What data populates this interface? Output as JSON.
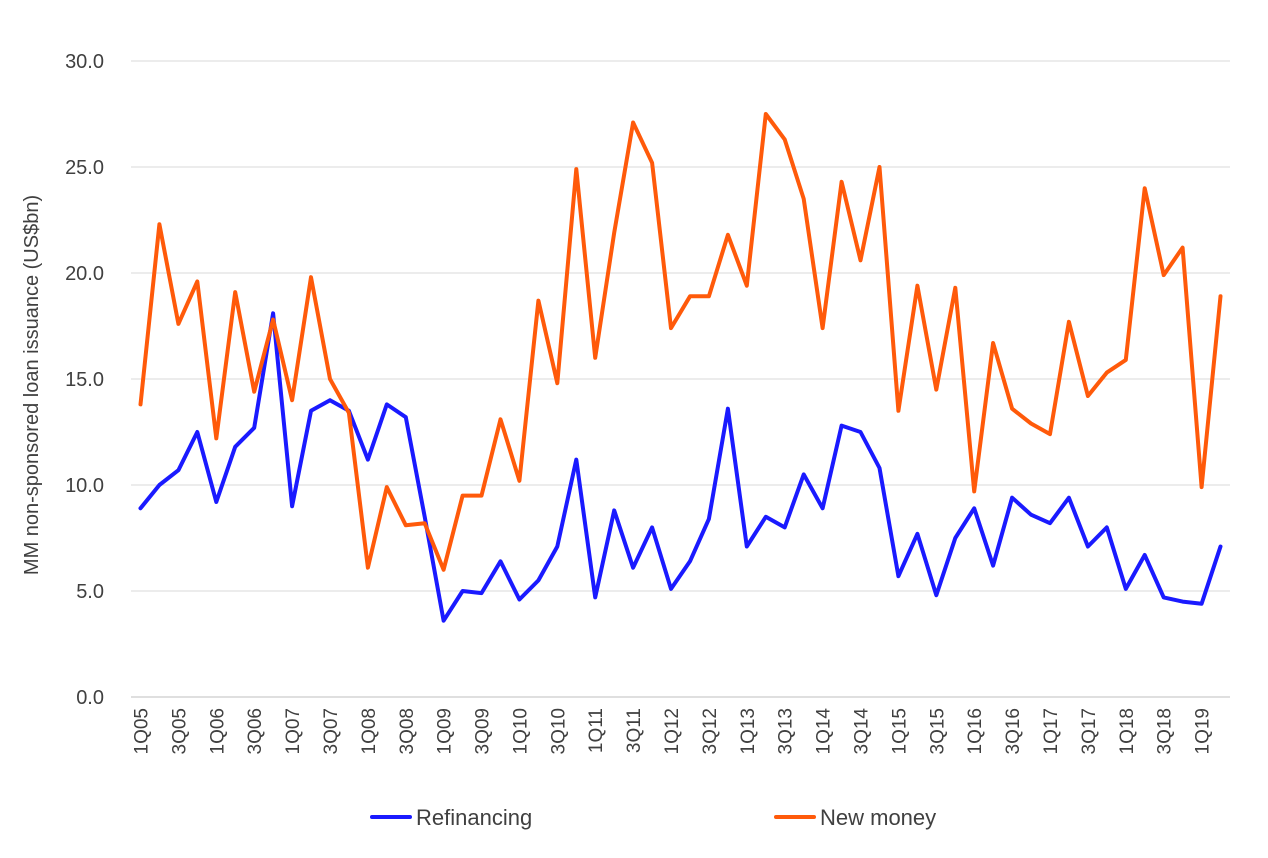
{
  "chart_data": {
    "type": "line",
    "title": "",
    "xlabel": "",
    "ylabel": "MM non-sponsored loan issuance (US$bn)",
    "ylim": [
      0,
      30
    ],
    "yticks": [
      "0.0",
      "5.0",
      "10.0",
      "15.0",
      "20.0",
      "25.0",
      "30.0"
    ],
    "grid": true,
    "legend_position": "bottom",
    "x": [
      "1Q05",
      "2Q05",
      "3Q05",
      "4Q05",
      "1Q06",
      "2Q06",
      "3Q06",
      "4Q06",
      "1Q07",
      "2Q07",
      "3Q07",
      "4Q07",
      "1Q08",
      "2Q08",
      "3Q08",
      "4Q08",
      "1Q09",
      "2Q09",
      "3Q09",
      "4Q09",
      "1Q10",
      "2Q10",
      "3Q10",
      "4Q10",
      "1Q11",
      "2Q11",
      "3Q11",
      "4Q11",
      "1Q12",
      "2Q12",
      "3Q12",
      "4Q12",
      "1Q13",
      "2Q13",
      "3Q13",
      "4Q13",
      "1Q14",
      "2Q14",
      "3Q14",
      "4Q14",
      "1Q15",
      "2Q15",
      "3Q15",
      "4Q15",
      "1Q16",
      "2Q16",
      "3Q16",
      "4Q16",
      "1Q17",
      "2Q17",
      "3Q17",
      "4Q17",
      "1Q18",
      "2Q18",
      "3Q18",
      "4Q18",
      "1Q19",
      "2Q19"
    ],
    "x_tick_labels": [
      "1Q05",
      "3Q05",
      "1Q06",
      "3Q06",
      "1Q07",
      "3Q07",
      "1Q08",
      "3Q08",
      "1Q09",
      "3Q09",
      "1Q10",
      "3Q10",
      "1Q11",
      "3Q11",
      "1Q12",
      "3Q12",
      "1Q13",
      "3Q13",
      "1Q14",
      "3Q14",
      "1Q15",
      "3Q15",
      "1Q16",
      "3Q16",
      "1Q17",
      "3Q17",
      "1Q18",
      "3Q18",
      "1Q19"
    ],
    "series": [
      {
        "name": "Refinancing",
        "color": "#1a1aff",
        "values": [
          8.9,
          10.0,
          10.7,
          12.5,
          9.2,
          11.8,
          12.7,
          18.1,
          9.0,
          13.5,
          14.0,
          13.5,
          11.2,
          13.8,
          13.2,
          8.5,
          3.6,
          5.0,
          4.9,
          6.4,
          4.6,
          5.5,
          7.1,
          11.2,
          4.7,
          8.8,
          6.1,
          8.0,
          5.1,
          6.4,
          8.4,
          13.6,
          7.1,
          8.5,
          8.0,
          10.5,
          8.9,
          12.8,
          12.5,
          10.8,
          5.7,
          7.7,
          4.8,
          7.5,
          8.9,
          6.2,
          9.4,
          8.6,
          8.2,
          9.4,
          7.1,
          8.0,
          5.1,
          6.7,
          4.7,
          4.5,
          4.4,
          7.1
        ]
      },
      {
        "name": "New money",
        "color": "#ff5a0a",
        "values": [
          13.8,
          22.3,
          17.6,
          19.6,
          12.2,
          19.1,
          14.4,
          17.8,
          14.0,
          19.8,
          15.0,
          13.4,
          6.1,
          9.9,
          8.1,
          8.2,
          6.0,
          9.5,
          9.5,
          13.1,
          10.2,
          18.7,
          14.8,
          24.9,
          16.0,
          21.9,
          27.1,
          25.2,
          17.4,
          18.9,
          18.9,
          21.8,
          19.4,
          27.5,
          26.3,
          23.5,
          17.4,
          24.3,
          20.6,
          25.0,
          13.5,
          19.4,
          14.5,
          19.3,
          9.7,
          16.7,
          13.6,
          12.9,
          12.4,
          17.7,
          14.2,
          15.3,
          15.9,
          24.0,
          19.9,
          21.2,
          9.9,
          18.9
        ]
      }
    ]
  }
}
